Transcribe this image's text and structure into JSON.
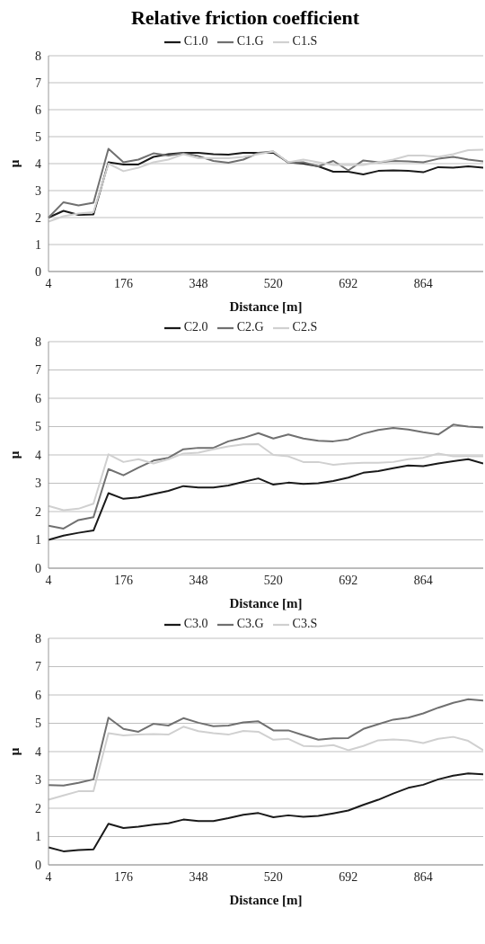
{
  "chart_data": [
    {
      "type": "line",
      "title": "Relative friction coefficient",
      "xlabel": "Distance [m]",
      "ylabel": "μ",
      "categories": [
        "4",
        null,
        null,
        null,
        null,
        "176",
        null,
        null,
        null,
        null,
        "348",
        null,
        null,
        null,
        null,
        "520",
        null,
        null,
        null,
        null,
        "692",
        null,
        null,
        null,
        null,
        "864",
        null,
        null,
        null,
        null
      ],
      "series": [
        {
          "name": "C1.0",
          "color": "#1a1a1a",
          "values": [
            2.0,
            2.25,
            2.1,
            2.12,
            4.05,
            3.97,
            3.97,
            4.25,
            4.35,
            4.4,
            4.4,
            4.35,
            4.33,
            4.4,
            4.4,
            4.4,
            4.05,
            4.0,
            3.9,
            3.7,
            3.7,
            3.6,
            3.73,
            3.75,
            3.73,
            3.68,
            3.87,
            3.85,
            3.9,
            3.85
          ]
        },
        {
          "name": "C1.G",
          "color": "#707070",
          "values": [
            2.0,
            2.57,
            2.45,
            2.55,
            4.55,
            4.05,
            4.15,
            4.38,
            4.3,
            4.38,
            4.28,
            4.1,
            4.03,
            4.15,
            4.4,
            4.45,
            4.03,
            4.05,
            3.9,
            4.1,
            3.75,
            4.12,
            4.05,
            4.1,
            4.08,
            4.05,
            4.18,
            4.25,
            4.15,
            4.08
          ]
        },
        {
          "name": "C1.S",
          "color": "#d0d0d0",
          "values": [
            1.85,
            2.05,
            2.15,
            2.2,
            4.0,
            3.72,
            3.85,
            4.05,
            4.15,
            4.35,
            4.2,
            4.2,
            4.2,
            4.25,
            4.35,
            4.45,
            4.05,
            4.15,
            4.05,
            3.95,
            3.95,
            3.95,
            4.05,
            4.15,
            4.3,
            4.3,
            4.25,
            4.35,
            4.5,
            4.52
          ]
        }
      ],
      "ylim": [
        0,
        8
      ],
      "yticks": [
        0,
        1,
        2,
        3,
        4,
        5,
        6,
        7,
        8
      ],
      "grid": "y",
      "legend": "top"
    },
    {
      "type": "line",
      "xlabel": "Distance [m]",
      "ylabel": "μ",
      "categories": [
        "4",
        null,
        null,
        null,
        null,
        "176",
        null,
        null,
        null,
        null,
        "348",
        null,
        null,
        null,
        null,
        "520",
        null,
        null,
        null,
        null,
        "692",
        null,
        null,
        null,
        null,
        "864",
        null,
        null,
        null,
        null
      ],
      "series": [
        {
          "name": "C2.0",
          "color": "#1a1a1a",
          "values": [
            1.0,
            1.15,
            1.25,
            1.33,
            2.65,
            2.45,
            2.5,
            2.62,
            2.73,
            2.9,
            2.85,
            2.85,
            2.92,
            3.05,
            3.17,
            2.95,
            3.02,
            2.98,
            3.0,
            3.08,
            3.2,
            3.37,
            3.43,
            3.53,
            3.63,
            3.6,
            3.7,
            3.78,
            3.85,
            3.7
          ]
        },
        {
          "name": "C2.G",
          "color": "#707070",
          "values": [
            1.5,
            1.4,
            1.7,
            1.8,
            3.5,
            3.28,
            3.55,
            3.8,
            3.9,
            4.2,
            4.25,
            4.25,
            4.48,
            4.6,
            4.77,
            4.58,
            4.72,
            4.58,
            4.5,
            4.48,
            4.55,
            4.75,
            4.88,
            4.95,
            4.9,
            4.8,
            4.72,
            5.07,
            5.0,
            4.97
          ]
        },
        {
          "name": "C2.S",
          "color": "#d0d0d0",
          "values": [
            2.2,
            2.05,
            2.1,
            2.28,
            4.02,
            3.75,
            3.85,
            3.7,
            3.85,
            4.05,
            4.08,
            4.2,
            4.3,
            4.37,
            4.38,
            4.0,
            3.95,
            3.75,
            3.75,
            3.65,
            3.7,
            3.72,
            3.72,
            3.75,
            3.85,
            3.9,
            4.05,
            3.95,
            3.95,
            3.95
          ]
        }
      ],
      "ylim": [
        0,
        8
      ],
      "yticks": [
        0,
        1,
        2,
        3,
        4,
        5,
        6,
        7,
        8
      ],
      "grid": "y",
      "legend": "top"
    },
    {
      "type": "line",
      "xlabel": "Distance [m]",
      "ylabel": "μ",
      "categories": [
        "4",
        null,
        null,
        null,
        null,
        "176",
        null,
        null,
        null,
        null,
        "348",
        null,
        null,
        null,
        null,
        "520",
        null,
        null,
        null,
        null,
        "692",
        null,
        null,
        null,
        null,
        "864",
        null,
        null,
        null,
        null
      ],
      "series": [
        {
          "name": "C3.0",
          "color": "#1a1a1a",
          "values": [
            0.62,
            0.48,
            0.52,
            0.55,
            1.45,
            1.3,
            1.35,
            1.42,
            1.47,
            1.6,
            1.55,
            1.55,
            1.65,
            1.77,
            1.83,
            1.68,
            1.75,
            1.7,
            1.73,
            1.82,
            1.92,
            2.12,
            2.3,
            2.52,
            2.72,
            2.83,
            3.02,
            3.15,
            3.23,
            3.2
          ]
        },
        {
          "name": "C3.G",
          "color": "#707070",
          "values": [
            2.82,
            2.8,
            2.9,
            3.02,
            5.2,
            4.8,
            4.7,
            4.98,
            4.92,
            5.18,
            5.02,
            4.9,
            4.92,
            5.03,
            5.07,
            4.75,
            4.75,
            4.58,
            4.42,
            4.47,
            4.48,
            4.8,
            4.97,
            5.13,
            5.2,
            5.35,
            5.55,
            5.72,
            5.85,
            5.8
          ]
        },
        {
          "name": "C3.S",
          "color": "#d0d0d0",
          "values": [
            2.3,
            2.45,
            2.6,
            2.6,
            4.65,
            4.57,
            4.6,
            4.62,
            4.6,
            4.88,
            4.72,
            4.65,
            4.6,
            4.73,
            4.7,
            4.42,
            4.45,
            4.2,
            4.18,
            4.23,
            4.05,
            4.2,
            4.4,
            4.43,
            4.4,
            4.3,
            4.45,
            4.52,
            4.38,
            4.05
          ]
        }
      ],
      "ylim": [
        0,
        8
      ],
      "yticks": [
        0,
        1,
        2,
        3,
        4,
        5,
        6,
        7,
        8
      ],
      "grid": "y",
      "legend": "top"
    }
  ]
}
